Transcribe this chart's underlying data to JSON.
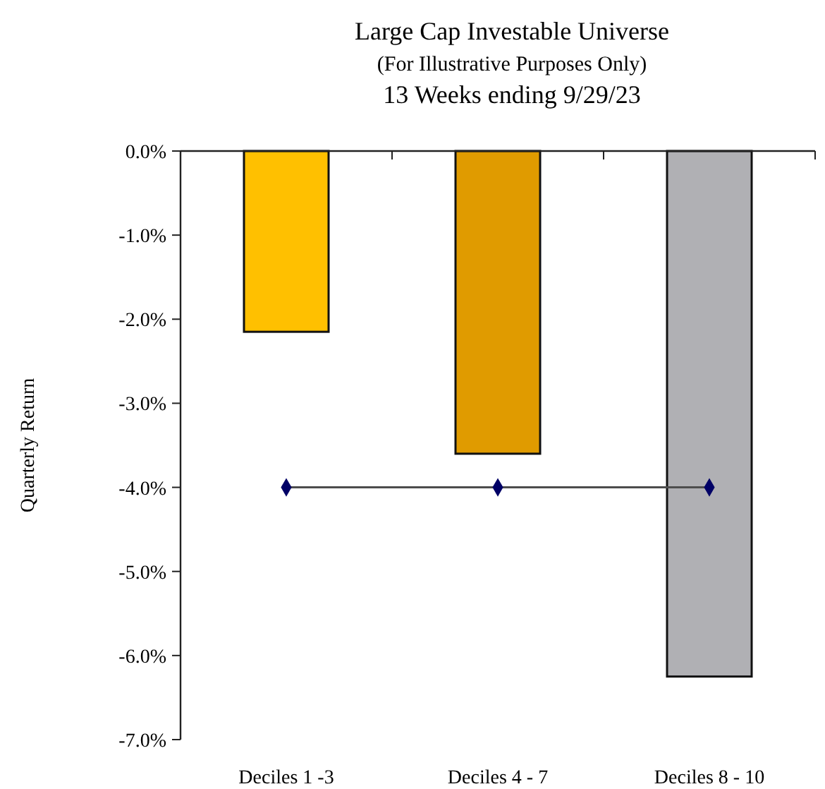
{
  "chart_data": {
    "type": "bar",
    "title": "Large Cap Investable Universe",
    "subtitle": "(For Illustrative Purposes Only)\n13 Weeks ending 9/29/23",
    "ylabel": "Quarterly Return",
    "categories": [
      "Deciles 1 -3",
      "Deciles 4 - 7",
      "Deciles 8 - 10"
    ],
    "series": [
      {
        "colors": [
          "#ffc000",
          "#e09b00",
          "#b0b0b4"
        ],
        "values": [
          -2.15,
          -3.6,
          -6.25
        ]
      },
      {
        "type": "line",
        "color": "#4d4d4d",
        "marker": "diamond",
        "values": [
          -4.0,
          -4.0,
          -4.0
        ]
      }
    ],
    "ylim": [
      -7,
      0
    ],
    "yticks": [
      {
        "value": 0,
        "label": "0.0%"
      },
      {
        "value": -1,
        "label": "-1.0%"
      },
      {
        "value": -2,
        "label": "-2.0%"
      },
      {
        "value": -3,
        "label": "-3.0%"
      },
      {
        "value": -4,
        "label": "-4.0%"
      },
      {
        "value": -5,
        "label": "-5.0%"
      },
      {
        "value": -6,
        "label": "-6.0%"
      },
      {
        "value": -7,
        "label": "-7.0%"
      }
    ],
    "grid": false
  }
}
